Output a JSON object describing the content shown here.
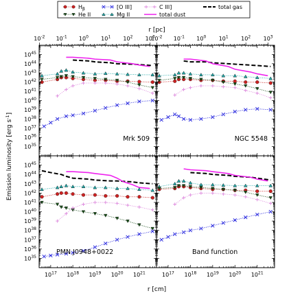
{
  "chart_data": {
    "type": "line",
    "layout": "2x2 grid, shared axes",
    "xlabel_bottom": "r [cm]",
    "xlabel_top": "r [pc]",
    "ylabel": "Emission luminosity [erg s$^{-1}$]",
    "x_bottom_scale": "log",
    "x_top_scale": "log",
    "xlim_cm": [
      3e+16,
      6e+21
    ],
    "ylim": [
      1e+34,
      1e+46
    ],
    "y_scale": "log",
    "x_bottom_ticks": [
      "10^17",
      "10^18",
      "10^19",
      "10^20",
      "10^21"
    ],
    "x_bottom_tick_values": [
      1e+17,
      1e+18,
      1e+19,
      1e+20,
      1e+21
    ],
    "x_top_ticks": [
      "10^-2",
      "10^-1",
      "10^0",
      "10^1",
      "10^2",
      "10^3"
    ],
    "x_top_tick_values_pc": [
      0.01,
      0.1,
      1,
      10,
      100,
      1000
    ],
    "y_ticks": [
      "10^35",
      "10^36",
      "10^37",
      "10^38",
      "10^39",
      "10^40",
      "10^41",
      "10^42",
      "10^43",
      "10^44",
      "10^45"
    ],
    "y_tick_exponents": [
      35,
      36,
      37,
      38,
      39,
      40,
      41,
      42,
      43,
      44,
      45
    ],
    "legend_position": "top, outside",
    "legend": [
      {
        "key": "hb",
        "label": "H_β",
        "color": "#cc2222",
        "marker": "circle",
        "line": "dotted"
      },
      {
        "key": "he2",
        "label": "He II",
        "color": "#1a4d1a",
        "marker": "triangle-down",
        "line": "dotted"
      },
      {
        "key": "o3",
        "label": "[O III]",
        "color": "#2222dd",
        "marker": "x",
        "line": "dotted"
      },
      {
        "key": "mg2",
        "label": "Mg II",
        "color": "#22aaaa",
        "marker": "triangle-up",
        "line": "dotted"
      },
      {
        "key": "c3",
        "label": "C III]",
        "color": "#dd88dd",
        "marker": "plus",
        "line": "dotted"
      },
      {
        "key": "dust",
        "label": "total dust",
        "color": "#ee22ee",
        "marker": "none",
        "line": "solid"
      },
      {
        "key": "gas",
        "label": "total gas",
        "color": "#000000",
        "marker": "none",
        "line": "dashed"
      }
    ],
    "panels": [
      {
        "label": "Mrk 509",
        "series": {
          "gas": {
            "x": [
              1e+18,
              5e+18,
              1e+19,
              5e+19,
              1e+20,
              5e+20,
              1e+21,
              4e+21
            ],
            "y": [
              44.4,
              44.3,
              44.2,
              44.1,
              44.0,
              43.95,
              43.9,
              43.8
            ]
          },
          "dust": {
            "x": [
              5e+17,
              1e+18,
              5e+18,
              1e+19,
              5e+19,
              1e+20,
              5e+20,
              1e+21,
              3e+21
            ],
            "y": [
              44.7,
              44.7,
              44.6,
              44.5,
              44.4,
              44.2,
              44.0,
              43.85,
              43.7
            ]
          },
          "mg2": {
            "x": [
              4e+16,
              2e+17,
              3e+17,
              5e+17,
              1e+18,
              3e+18,
              1e+19,
              3e+19,
              1e+20,
              3e+20,
              1e+21,
              4e+21
            ],
            "y": [
              42.7,
              42.9,
              43.2,
              43.3,
              43.1,
              43.0,
              42.9,
              42.95,
              42.9,
              42.85,
              42.8,
              42.8
            ]
          },
          "hb": {
            "x": [
              4e+16,
              2e+17,
              3e+17,
              5e+17,
              1e+18,
              3e+18,
              1e+19,
              3e+19,
              1e+20,
              3e+20,
              1e+21,
              4e+21
            ],
            "y": [
              42.0,
              42.3,
              42.5,
              42.5,
              42.4,
              42.3,
              42.2,
              42.2,
              42.1,
              42.1,
              42.05,
              42.0
            ]
          },
          "he2": {
            "x": [
              4e+16,
              2e+17,
              3e+17,
              5e+17,
              1e+18,
              3e+18,
              1e+19,
              3e+19,
              1e+20,
              3e+20,
              1e+21,
              4e+21
            ],
            "y": [
              42.3,
              42.5,
              42.6,
              42.7,
              42.6,
              42.5,
              42.4,
              42.3,
              42.2,
              42.0,
              41.7,
              41.4
            ]
          },
          "c3": {
            "x": [
              2e+17,
              5e+17,
              1e+18,
              3e+18,
              1e+19,
              3e+19,
              1e+20,
              3e+20,
              1e+21,
              4e+21
            ],
            "y": [
              40.5,
              41.2,
              41.6,
              41.9,
              41.9,
              41.9,
              41.8,
              41.6,
              41.3,
              40.8
            ]
          },
          "o3": {
            "x": [
              5e+16,
              1e+17,
              2e+17,
              5e+17,
              1e+18,
              3e+18,
              1e+19,
              3e+19,
              1e+20,
              3e+20,
              1e+21,
              4e+21
            ],
            "y": [
              37.2,
              37.6,
              38.0,
              38.3,
              38.4,
              38.6,
              38.9,
              39.2,
              39.5,
              39.7,
              39.9,
              40.0
            ]
          }
        }
      },
      {
        "label": "NGC 5548",
        "series": {
          "gas": {
            "x": [
              5e+17,
              1e+18,
              5e+18,
              1e+19,
              5e+19,
              1e+20,
              5e+20,
              1e+21,
              4e+21
            ],
            "y": [
              44.3,
              44.2,
              44.2,
              44.1,
              44.0,
              43.95,
              43.85,
              43.8,
              43.7
            ]
          },
          "dust": {
            "x": [
              5e+17,
              1e+18,
              5e+18,
              1e+19,
              5e+19,
              1e+20,
              5e+20,
              1e+21,
              3e+21
            ],
            "y": [
              44.5,
              44.5,
              44.3,
              44.0,
              43.7,
              43.4,
              43.1,
              42.9,
              42.7
            ]
          },
          "mg2": {
            "x": [
              4e+16,
              2e+17,
              3e+17,
              5e+17,
              1e+18,
              3e+18,
              1e+19,
              3e+19,
              1e+20,
              3e+20,
              1e+21,
              4e+21
            ],
            "y": [
              42.7,
              42.8,
              43.0,
              43.0,
              42.9,
              42.8,
              42.8,
              42.7,
              42.7,
              42.6,
              42.5,
              42.4
            ]
          },
          "hb": {
            "x": [
              4e+16,
              2e+17,
              3e+17,
              5e+17,
              1e+18,
              3e+18,
              1e+19,
              3e+19,
              1e+20,
              3e+20,
              1e+21,
              4e+21
            ],
            "y": [
              42.0,
              42.1,
              42.3,
              42.3,
              42.3,
              42.2,
              42.2,
              42.1,
              42.1,
              42.0,
              42.0,
              41.9
            ]
          },
          "he2": {
            "x": [
              4e+16,
              2e+17,
              3e+17,
              5e+17,
              1e+18,
              3e+18,
              1e+19,
              3e+19,
              1e+20,
              3e+20,
              1e+21,
              4e+21
            ],
            "y": [
              42.2,
              42.4,
              42.5,
              42.5,
              42.4,
              42.3,
              42.2,
              42.0,
              41.8,
              41.6,
              41.3,
              40.9
            ]
          },
          "c3": {
            "x": [
              2e+17,
              5e+17,
              1e+18,
              3e+18,
              1e+19,
              3e+19,
              1e+20,
              3e+20,
              1e+21,
              4e+21
            ],
            "y": [
              40.6,
              41.2,
              41.4,
              41.6,
              41.6,
              41.5,
              41.4,
              41.1,
              40.8,
              40.3
            ]
          },
          "o3": {
            "x": [
              5e+16,
              1e+17,
              2e+17,
              3e+17,
              5e+17,
              1e+18,
              3e+18,
              1e+19,
              3e+19,
              1e+20,
              3e+20,
              1e+21,
              4e+21
            ],
            "y": [
              37.9,
              38.2,
              38.5,
              38.3,
              38.0,
              37.9,
              38.0,
              38.2,
              38.5,
              38.8,
              39.0,
              39.1,
              39.0
            ]
          }
        }
      },
      {
        "label": "PMN J0948+0022",
        "series": {
          "gas": {
            "x": [
              4e+16,
              1e+17,
              3e+17,
              5e+17,
              1e+18,
              5e+18,
              1e+19,
              5e+19,
              1e+20,
              5e+20,
              1e+21,
              4e+21
            ],
            "y": [
              44.4,
              44.2,
              44.0,
              43.8,
              43.6,
              43.5,
              43.4,
              43.3,
              43.3,
              43.2,
              43.1,
              43.0
            ]
          },
          "dust": {
            "x": [
              5e+17,
              1e+18,
              5e+18,
              1e+19,
              5e+19,
              1e+20,
              2e+20,
              5e+20,
              1e+21,
              3e+21
            ],
            "y": [
              44.3,
              44.3,
              44.2,
              44.1,
              43.9,
              43.6,
              43.2,
              42.9,
              42.6,
              42.5
            ]
          },
          "mg2": {
            "x": [
              4e+16,
              2e+17,
              3e+17,
              5e+17,
              1e+18,
              3e+18,
              1e+19,
              3e+19,
              1e+20,
              3e+20,
              1e+21,
              4e+21
            ],
            "y": [
              42.4,
              42.6,
              42.7,
              42.8,
              42.7,
              42.7,
              42.6,
              42.6,
              42.5,
              42.5,
              42.4,
              42.3
            ]
          },
          "hb": {
            "x": [
              4e+16,
              2e+17,
              3e+17,
              5e+17,
              1e+18,
              3e+18,
              1e+19,
              3e+19,
              1e+20,
              3e+20,
              1e+21,
              4e+21
            ],
            "y": [
              41.6,
              41.9,
              42.0,
              42.0,
              41.9,
              41.8,
              41.8,
              41.7,
              41.7,
              41.6,
              41.6,
              41.5
            ]
          },
          "he2": {
            "x": [
              4e+16,
              2e+17,
              3e+17,
              5e+17,
              1e+18,
              3e+18,
              1e+19,
              3e+19,
              1e+20,
              3e+20,
              1e+21,
              4e+21
            ],
            "y": [
              41.0,
              40.8,
              40.5,
              40.4,
              40.2,
              40.0,
              39.8,
              39.6,
              39.3,
              39.0,
              38.6,
              38.2
            ]
          },
          "c3": {
            "x": [
              2e+17,
              5e+17,
              1e+18,
              3e+18,
              1e+19,
              3e+19,
              1e+20,
              3e+20,
              1e+21,
              4e+21
            ],
            "y": [
              39.0,
              39.8,
              40.4,
              40.8,
              41.0,
              41.0,
              40.9,
              40.7,
              40.5,
              40.2
            ]
          },
          "o3": {
            "x": [
              5e+16,
              1e+17,
              2e+17,
              5e+17,
              1e+18,
              3e+18,
              1e+19,
              3e+19,
              1e+20,
              3e+20,
              1e+21,
              4e+21
            ],
            "y": [
              35.2,
              35.3,
              35.4,
              35.5,
              35.6,
              35.8,
              36.2,
              36.6,
              37.0,
              37.3,
              37.6,
              37.9
            ]
          }
        }
      },
      {
        "label": "Band function",
        "series": {
          "gas": {
            "x": [
              1e+18,
              5e+18,
              1e+19,
              5e+19,
              1e+20,
              5e+20,
              1e+21,
              4e+21
            ],
            "y": [
              44.2,
              44.1,
              44.0,
              43.9,
              43.8,
              43.7,
              43.6,
              43.4
            ]
          },
          "dust": {
            "x": [
              5e+17,
              1e+18,
              5e+18,
              1e+19,
              5e+19,
              1e+20,
              5e+20,
              1e+21,
              3e+21
            ],
            "y": [
              44.6,
              44.5,
              44.4,
              44.3,
              44.1,
              43.9,
              43.7,
              43.5,
              43.3
            ]
          },
          "mg2": {
            "x": [
              4e+16,
              2e+17,
              3e+17,
              5e+17,
              1e+18,
              3e+18,
              1e+19,
              3e+19,
              1e+20,
              3e+20,
              1e+21,
              4e+21
            ],
            "y": [
              42.7,
              43.0,
              43.3,
              43.3,
              43.1,
              42.9,
              42.9,
              42.85,
              42.8,
              42.8,
              42.8,
              42.8
            ]
          },
          "hb": {
            "x": [
              4e+16,
              2e+17,
              3e+17,
              5e+17,
              1e+18,
              3e+18,
              1e+19,
              3e+19,
              1e+20,
              3e+20,
              1e+21,
              4e+21
            ],
            "y": [
              42.4,
              42.5,
              42.7,
              42.7,
              42.6,
              42.5,
              42.4,
              42.4,
              42.3,
              42.3,
              42.2,
              42.2
            ]
          },
          "he2": {
            "x": [
              4e+16,
              2e+17,
              3e+17,
              5e+17,
              1e+18,
              3e+18,
              1e+19,
              3e+19,
              1e+20,
              3e+20,
              1e+21,
              4e+21
            ],
            "y": [
              42.5,
              42.6,
              42.8,
              42.8,
              42.7,
              42.6,
              42.5,
              42.4,
              42.3,
              42.1,
              41.8,
              41.5
            ]
          },
          "c3": {
            "x": [
              2e+17,
              5e+17,
              1e+18,
              3e+18,
              1e+19,
              3e+19,
              1e+20,
              3e+20,
              1e+21,
              4e+21
            ],
            "y": [
              40.8,
              41.5,
              41.8,
              42.0,
              42.0,
              41.9,
              41.8,
              41.6,
              41.3,
              40.9
            ]
          },
          "o3": {
            "x": [
              5e+16,
              1e+17,
              2e+17,
              5e+17,
              1e+18,
              3e+18,
              1e+19,
              3e+19,
              1e+20,
              3e+20,
              1e+21,
              4e+21
            ],
            "y": [
              37.0,
              37.3,
              37.6,
              37.8,
              38.0,
              38.2,
              38.5,
              38.8,
              39.1,
              39.4,
              39.7,
              40.0
            ]
          }
        }
      }
    ]
  }
}
